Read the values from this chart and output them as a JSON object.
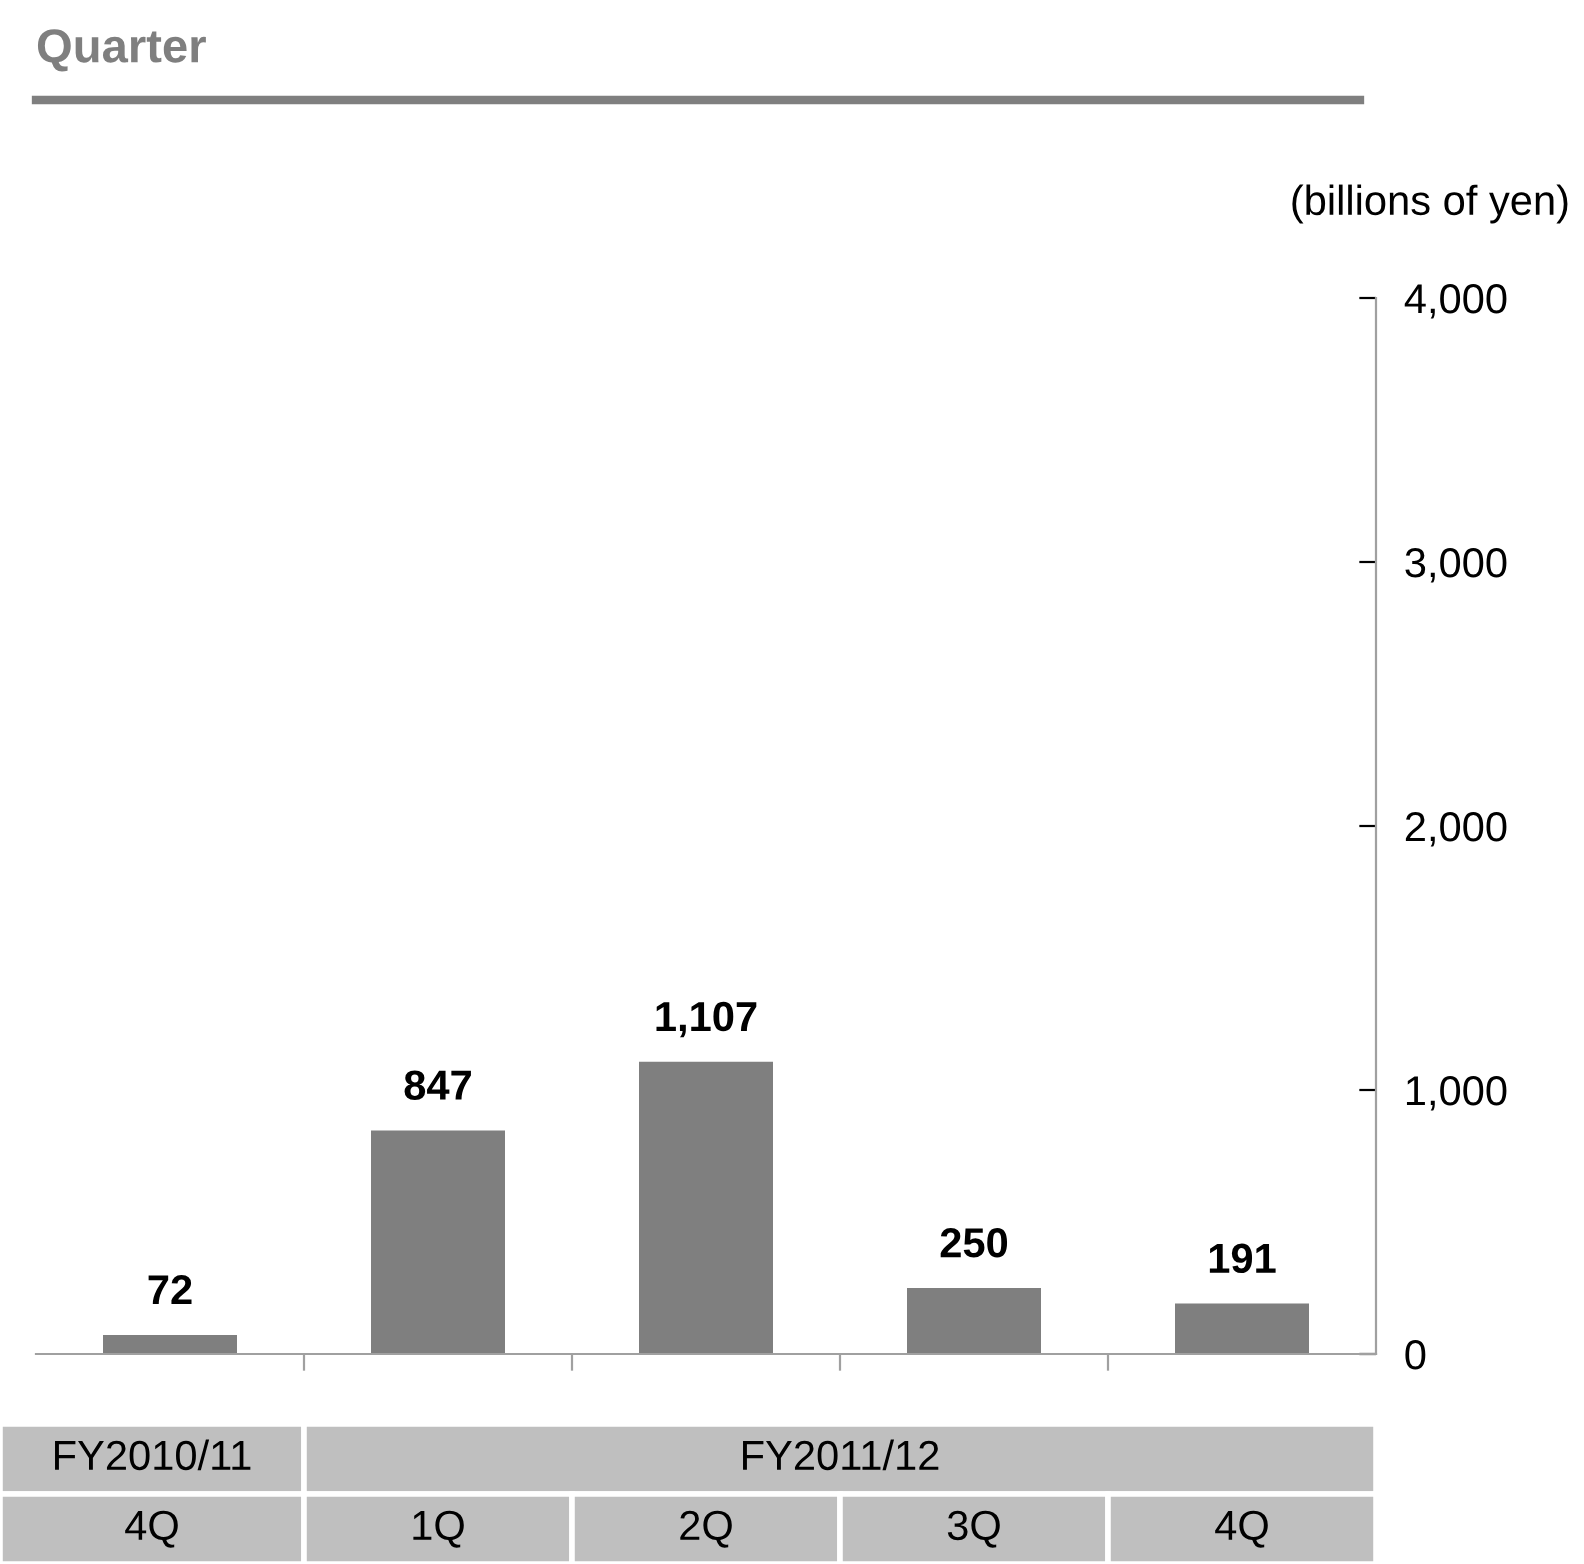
{
  "chart_data": {
    "type": "bar",
    "title": "Quarter",
    "ylabel": "(billions of yen)",
    "categories": [
      "4Q",
      "1Q",
      "2Q",
      "3Q",
      "4Q"
    ],
    "values": [
      72,
      847,
      1107,
      250,
      191
    ],
    "color": "#7f7f7f",
    "value_labels": [
      "72",
      "847",
      "1,107",
      "250",
      "191"
    ],
    "ylim": [
      0,
      4000
    ],
    "yticks": [
      {
        "value": 0,
        "label": "0"
      },
      {
        "value": 1000,
        "label": "1,000"
      },
      {
        "value": 2000,
        "label": "2,000"
      },
      {
        "value": 3000,
        "label": "3,000"
      },
      {
        "value": 4000,
        "label": "4,000"
      }
    ],
    "annotations": [
      "FY2010/11",
      "FY2011/12"
    ],
    "grid": false,
    "legend": false
  }
}
